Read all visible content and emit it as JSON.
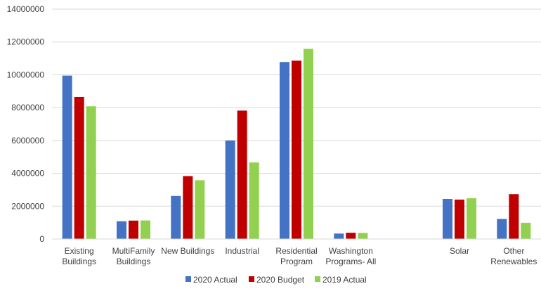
{
  "chart_data": {
    "type": "bar",
    "title": "",
    "xlabel": "",
    "ylabel": "",
    "ylim": [
      0,
      14000000
    ],
    "yticks": [
      0,
      2000000,
      4000000,
      6000000,
      8000000,
      10000000,
      12000000,
      14000000
    ],
    "ytick_labels": [
      "0",
      "2000000",
      "4000000",
      "6000000",
      "8000000",
      "10000000",
      "12000000",
      "14000000"
    ],
    "grid": true,
    "legend_position": "bottom",
    "categories": [
      [
        "Existing",
        "Buildings"
      ],
      [
        "MultiFamily",
        "Buildings"
      ],
      [
        "New Buildings"
      ],
      [
        "Industrial"
      ],
      [
        "Residential",
        "Program"
      ],
      [
        "Washington",
        "Programs- All"
      ],
      [],
      [
        "Solar"
      ],
      [
        "Other",
        "Renewables"
      ]
    ],
    "series": [
      {
        "name": "2020 Actual",
        "color": "#4472C4",
        "values": [
          9950000,
          1080000,
          2620000,
          6000000,
          10780000,
          330000,
          null,
          2440000,
          1220000
        ]
      },
      {
        "name": "2020 Budget",
        "color": "#C00000",
        "values": [
          8650000,
          1120000,
          3830000,
          7820000,
          10860000,
          380000,
          null,
          2400000,
          2730000
        ]
      },
      {
        "name": "2019 Actual",
        "color": "#92D050",
        "values": [
          8080000,
          1130000,
          3580000,
          4660000,
          11580000,
          370000,
          null,
          2480000,
          990000
        ]
      }
    ]
  }
}
